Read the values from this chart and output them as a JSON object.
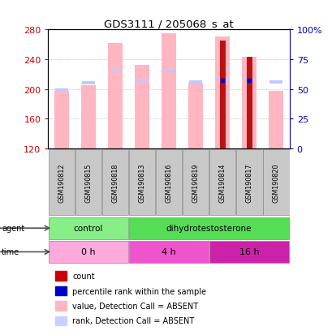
{
  "title": "GDS3111 / 205068_s_at",
  "samples": [
    "GSM190812",
    "GSM190815",
    "GSM190818",
    "GSM190813",
    "GSM190816",
    "GSM190819",
    "GSM190814",
    "GSM190817",
    "GSM190820"
  ],
  "ylim_left": [
    120,
    280
  ],
  "ylim_right": [
    0,
    100
  ],
  "yticks_left": [
    120,
    160,
    200,
    240,
    280
  ],
  "yticks_right": [
    0,
    25,
    50,
    75,
    100
  ],
  "pink_bar_top": [
    197,
    205,
    262,
    232,
    275,
    208,
    270,
    243,
    197
  ],
  "blue_sq_y": [
    197,
    206,
    222,
    210,
    222,
    207,
    211,
    212,
    207
  ],
  "count_bar_top": [
    120,
    120,
    120,
    120,
    120,
    120,
    265,
    243,
    120
  ],
  "blue_dot_y": [
    null,
    null,
    null,
    null,
    null,
    null,
    211,
    212,
    null
  ],
  "baseline": 120,
  "agent_groups": [
    {
      "label": "control",
      "span": [
        0,
        3
      ],
      "color": "#88EE88"
    },
    {
      "label": "dihydrotestosterone",
      "span": [
        3,
        9
      ],
      "color": "#55DD55"
    }
  ],
  "time_groups": [
    {
      "label": "0 h",
      "span": [
        0,
        3
      ],
      "color": "#FFAADD"
    },
    {
      "label": "4 h",
      "span": [
        3,
        6
      ],
      "color": "#EE55CC"
    },
    {
      "label": "16 h",
      "span": [
        6,
        9
      ],
      "color": "#CC22AA"
    }
  ],
  "legend_items": [
    {
      "color": "#CC0000",
      "label": "count"
    },
    {
      "color": "#0000CC",
      "label": "percentile rank within the sample"
    },
    {
      "color": "#FFB6C1",
      "label": "value, Detection Call = ABSENT"
    },
    {
      "color": "#C8D0FF",
      "label": "rank, Detection Call = ABSENT"
    }
  ],
  "pink_bar_color": "#FFB6C1",
  "blue_sq_color": "#C0C8FF",
  "count_color": "#BB1111",
  "blue_dot_color": "#0000CC",
  "left_tick_color": "#CC0000",
  "right_tick_color": "#0000BB",
  "bg_color": "#FFFFFF",
  "label_bg": "#C8C8C8",
  "border_color": "#888888"
}
